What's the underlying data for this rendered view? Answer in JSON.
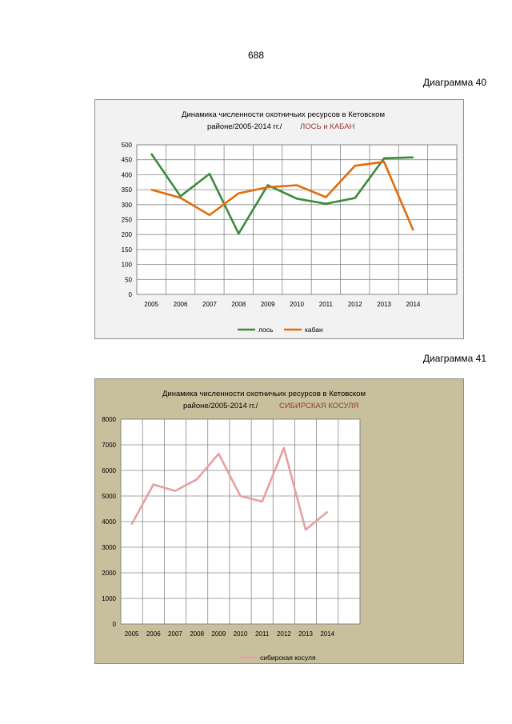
{
  "page": {
    "number": "688"
  },
  "captions": {
    "chart1": "Диаграмма 40",
    "chart2": "Диаграмма 41"
  },
  "chart_data": [
    {
      "type": "line",
      "title_line1": "Динамика численности охотничьих ресурсов в Кетовском",
      "title_line2": "районе/2005-2014 гг./",
      "title_highlight": "ЛОСЬ и КАБАН",
      "x": [
        "2005",
        "2006",
        "2007",
        "2008",
        "2009",
        "2010",
        "2011",
        "2012",
        "2013",
        "2014"
      ],
      "ylim": [
        0,
        500
      ],
      "yticks": [
        0,
        50,
        100,
        150,
        200,
        250,
        300,
        350,
        400,
        450,
        500
      ],
      "grid": true,
      "legend_position": "bottom",
      "series": [
        {
          "name": "лось",
          "color": "#3a8c3a",
          "values": [
            470,
            328,
            403,
            203,
            365,
            320,
            303,
            322,
            455,
            458
          ]
        },
        {
          "name": "кабан",
          "color": "#e36c0a",
          "values": [
            350,
            323,
            265,
            338,
            358,
            365,
            325,
            430,
            443,
            215
          ]
        }
      ],
      "colors": {
        "background": "#f2f2f2",
        "highlight": "#953735"
      }
    },
    {
      "type": "line",
      "title_line1": "Динамика численности  охотничьих ресурсов  в Кетовском",
      "title_line2": "районе/2005-2014  гг./",
      "title_highlight": "СИБИРСКАЯ КОСУЛЯ",
      "x": [
        "2005",
        "2006",
        "2007",
        "2008",
        "2009",
        "2010",
        "2011",
        "2012",
        "2013",
        "2014"
      ],
      "ylim": [
        0,
        8000
      ],
      "yticks": [
        0,
        1000,
        2000,
        3000,
        4000,
        5000,
        6000,
        7000,
        8000
      ],
      "grid": true,
      "legend_position": "bottom",
      "series": [
        {
          "name": "сибирская косуля",
          "color": "#e6a0a0",
          "values": [
            3900,
            5450,
            5200,
            5650,
            6650,
            5000,
            4780,
            6880,
            3680,
            4380
          ]
        }
      ],
      "colors": {
        "background": "#c8c09c",
        "highlight": "#953735"
      }
    }
  ]
}
